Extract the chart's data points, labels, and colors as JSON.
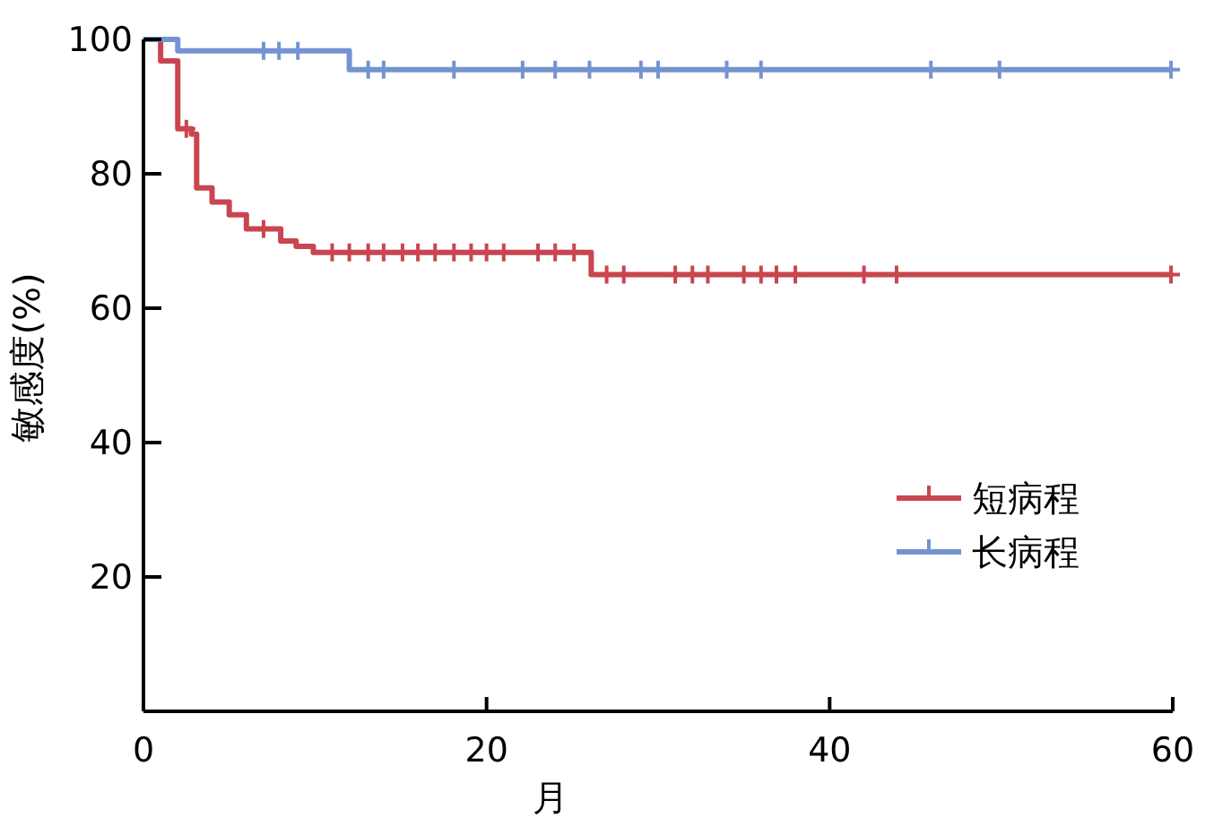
{
  "chart_data": {
    "type": "step",
    "xlabel": "月",
    "ylabel": "敏感度(%)",
    "xlim": [
      0,
      60
    ],
    "xticks": [
      0,
      20,
      40,
      60
    ],
    "ylim": [
      0,
      100
    ],
    "yticks": [
      {
        "value": 0,
        "label": null
      },
      20,
      40,
      60,
      80,
      100
    ],
    "grid": false,
    "legend": "bottom right",
    "series": [
      {
        "name": "短病程",
        "color": "#c9454f",
        "x": [
          0,
          1,
          2,
          2.8,
          3.1,
          4,
          5,
          6,
          8,
          8.9,
          9.9,
          26.1,
          60
        ],
        "values": [
          100,
          96.8,
          86.7,
          85.9,
          77.9,
          75.8,
          73.9,
          71.8,
          70,
          69.2,
          68.3,
          65,
          65
        ]
      },
      {
        "name": "长病程",
        "color": "#7394d0",
        "x": [
          0,
          2,
          12,
          60
        ],
        "values": [
          100,
          98.3,
          95.5,
          95.5
        ]
      },
      {
        "type": "scatter",
        "marker": "cross",
        "color": "#c9454f",
        "x": [
          2.5,
          7,
          11,
          12,
          13.1,
          14,
          15.1,
          16,
          17,
          18.1,
          19.1,
          20,
          21,
          23,
          24,
          25.1,
          27,
          28,
          31,
          32,
          32.9,
          35,
          36,
          36.9,
          38,
          42,
          43.9,
          59.9
        ],
        "values": [
          86.7,
          71.8,
          68.3,
          68.3,
          68.3,
          68.3,
          68.3,
          68.3,
          68.3,
          68.3,
          68.3,
          68.3,
          68.3,
          68.3,
          68.3,
          68.3,
          65,
          65,
          65,
          65,
          65,
          65,
          65,
          65,
          65,
          65,
          65,
          65
        ]
      },
      {
        "type": "scatter",
        "marker": "cross",
        "color": "#7394d0",
        "x": [
          7,
          7.9,
          9,
          13.1,
          14,
          18.1,
          22.1,
          24,
          26,
          29,
          30,
          34,
          36,
          45.9,
          49.9,
          59.9
        ],
        "values": [
          98.3,
          98.3,
          98.3,
          95.5,
          95.5,
          95.5,
          95.5,
          95.5,
          95.5,
          95.5,
          95.5,
          95.5,
          95.5,
          95.5,
          95.5,
          95.5
        ]
      }
    ]
  }
}
